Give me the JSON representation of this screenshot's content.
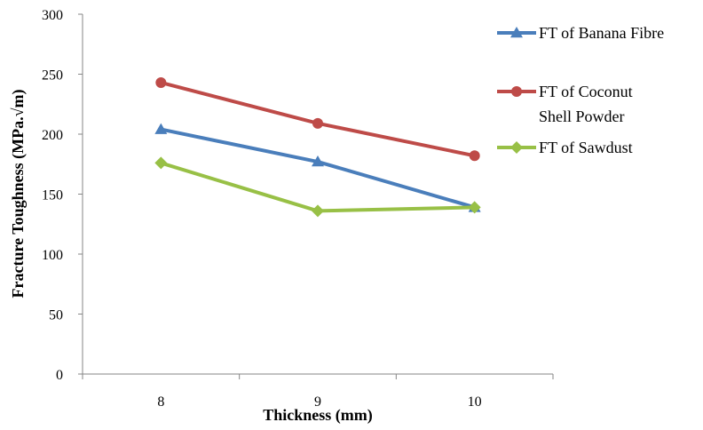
{
  "chart_data": {
    "type": "line",
    "title": "",
    "xlabel": "Thickness (mm)",
    "ylabel": "Fracture Toughness (MPa.√m)",
    "categories": [
      "8",
      "9",
      "10"
    ],
    "ylim": [
      0,
      300
    ],
    "yticks": [
      0,
      50,
      100,
      150,
      200,
      250,
      300
    ],
    "grid": false,
    "legend_position": "right",
    "series": [
      {
        "name": "FT of Banana Fibre",
        "legend_lines": [
          "FT of Banana Fibre"
        ],
        "marker": "triangle",
        "color": "#4a7ebb",
        "values": [
          204,
          177,
          139
        ]
      },
      {
        "name": "FT of Coconut Shell Powder",
        "legend_lines": [
          "FT of Coconut",
          "Shell Powder"
        ],
        "marker": "circle",
        "color": "#be4b48",
        "values": [
          243,
          209,
          182
        ]
      },
      {
        "name": "FT of Sawdust",
        "legend_lines": [
          "FT of Sawdust"
        ],
        "marker": "diamond",
        "color": "#98c046",
        "values": [
          176,
          136,
          139
        ]
      }
    ]
  }
}
